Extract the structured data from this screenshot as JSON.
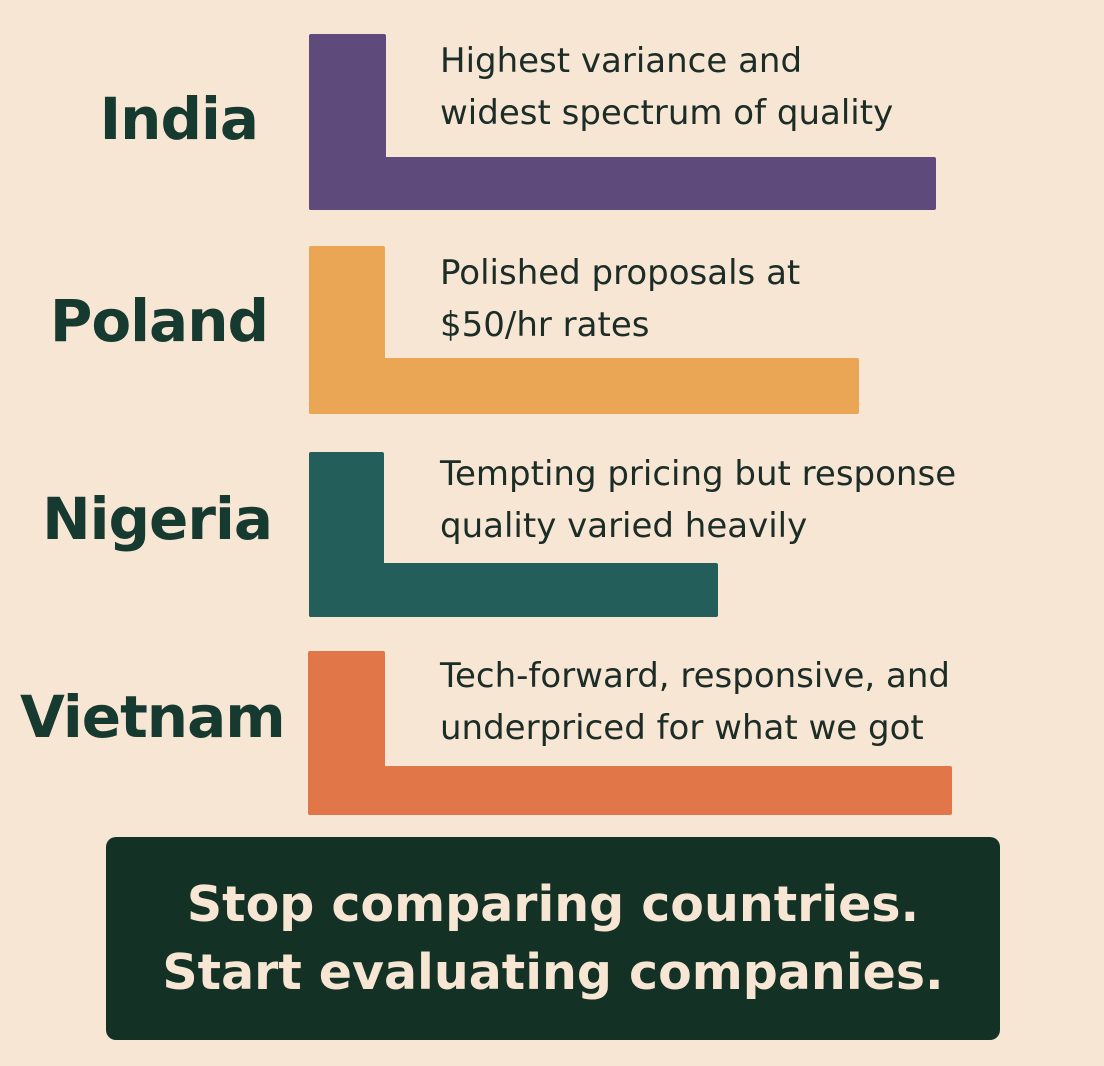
{
  "items": [
    {
      "country": "India",
      "color": "#5f4b7b",
      "description": [
        "Highest variance and",
        "widest spectrum of quality"
      ]
    },
    {
      "country": "Poland",
      "color": "#eaa655",
      "description": [
        "Polished proposals at",
        "$50/hr rates"
      ]
    },
    {
      "country": "Nigeria",
      "color": "#245e5a",
      "description": [
        "Tempting pricing but response",
        "quality varied heavily"
      ]
    },
    {
      "country": "Vietnam",
      "color": "#e17749",
      "description": [
        "Tech-forward, responsive, and",
        "underpriced for what we got"
      ]
    }
  ],
  "banner": {
    "line1": "Stop comparing countries.",
    "line2": "Start evaluating companies."
  }
}
